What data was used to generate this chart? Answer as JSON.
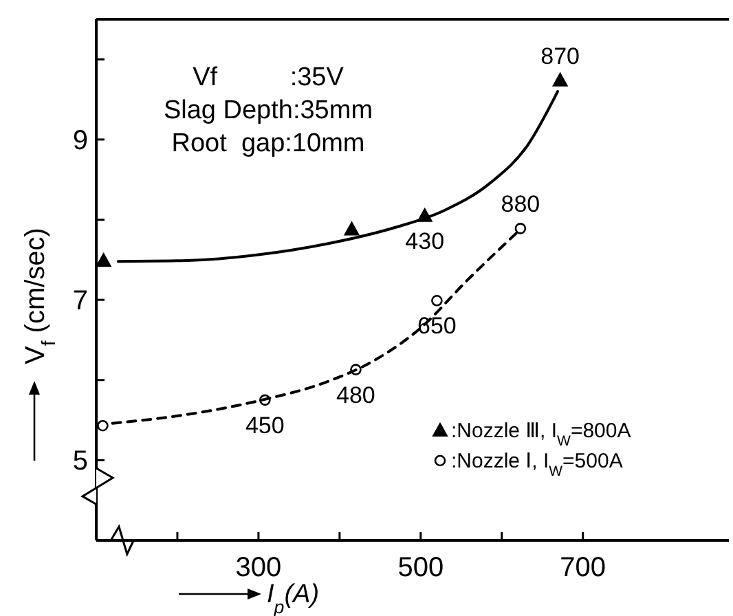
{
  "chart_data": {
    "type": "scatter",
    "xlabel": "I$_{p}$(A)",
    "ylabel": "V$_{f}$ (cm/sec)",
    "annotations": [
      "Vf          :35V",
      "Slag Depth:35mm",
      "Root  gap:10mm",
      {
        "text": "430",
        "x": 505,
        "y": 8.05
      },
      {
        "text": "870",
        "x": 672,
        "y": 9.74
      },
      {
        "text": "450",
        "x": 308,
        "y": 5.75
      },
      {
        "text": "480",
        "x": 420,
        "y": 6.13
      },
      {
        "text": "650",
        "x": 520,
        "y": 6.99
      },
      {
        "text": "880",
        "x": 623,
        "y": 7.89
      }
    ],
    "xlim": [
      100,
      880
    ],
    "ylim": [
      4,
      10.5
    ],
    "xticks": [
      {
        "value": 200,
        "label": null
      },
      300,
      {
        "value": 400,
        "label": null
      },
      500,
      {
        "value": 600,
        "label": null
      },
      700
    ],
    "yticks": [
      5,
      {
        "value": 6,
        "label": null
      },
      7,
      {
        "value": 8,
        "label": null
      },
      9,
      {
        "value": 10,
        "label": null
      }
    ],
    "grid": false,
    "legend": "bottom right",
    "series": [
      {
        "name": ":Nozzle Ⅲ, I$_{W}$=800A",
        "marker": "triangle",
        "color": "#000000",
        "x": [
          109,
          415,
          505,
          672
        ],
        "values": [
          7.49,
          7.88,
          8.05,
          9.74
        ]
      },
      {
        "name": ":Nozzle Ⅰ, I$_{W}$=500A",
        "marker": "circle",
        "color": "#000000",
        "x": [
          108,
          308,
          420,
          520,
          623
        ],
        "values": [
          5.43,
          5.75,
          6.13,
          6.99,
          7.89
        ]
      },
      {
        "type": "line",
        "line_style": "solid",
        "color": "#000000",
        "x": [
          127,
          212,
          298,
          385,
          471,
          528,
          586,
          632,
          669
        ],
        "values": [
          7.48,
          7.49,
          7.56,
          7.7,
          7.91,
          8.11,
          8.46,
          8.93,
          9.6
        ]
      },
      {
        "type": "line",
        "line_style": "dashed",
        "color": "#000000",
        "x": [
          120,
          212,
          304,
          385,
          442,
          500,
          557,
          623
        ],
        "values": [
          5.46,
          5.57,
          5.75,
          5.98,
          6.24,
          6.65,
          7.24,
          7.88
        ]
      }
    ]
  }
}
